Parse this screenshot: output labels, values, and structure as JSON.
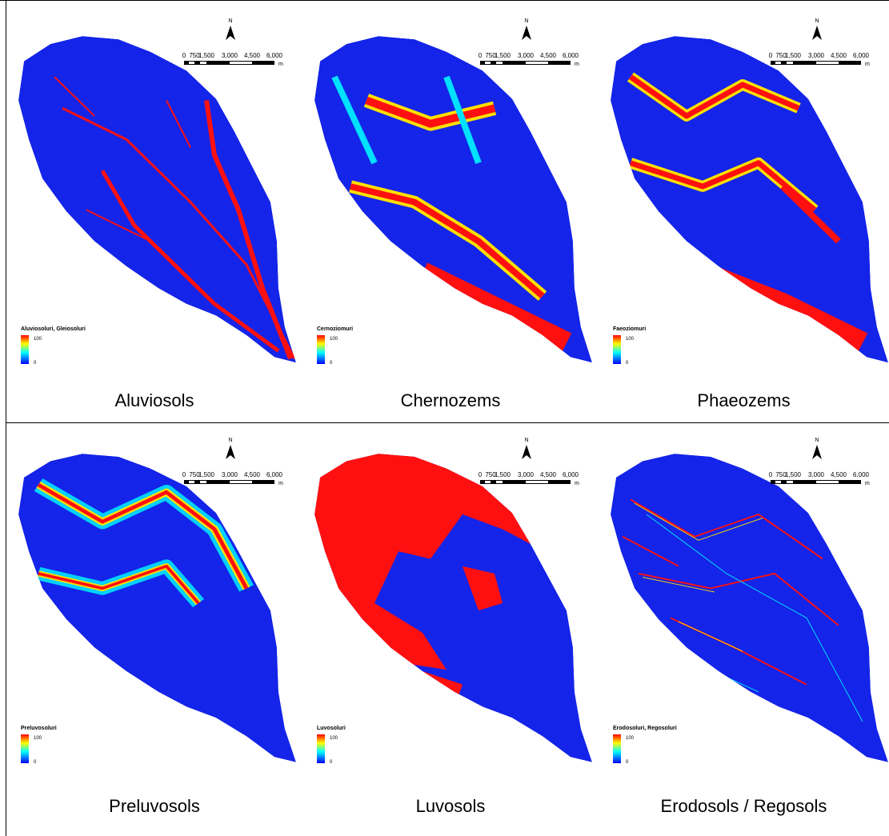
{
  "panels": [
    {
      "caption": "Aluviosols",
      "legend_title": "Aluviosoluri, Gleiosoluri",
      "legend_max": "100",
      "legend_min": "0",
      "north": "N",
      "scale_labels": [
        "0",
        "750",
        "1,500",
        "3,000",
        "4,500",
        "6,000"
      ],
      "scale_unit": "m"
    },
    {
      "caption": "Chernozems",
      "legend_title": "Cernoziomuri",
      "legend_max": "100",
      "legend_min": "0",
      "north": "N",
      "scale_labels": [
        "0",
        "750",
        "1,500",
        "3,000",
        "4,500",
        "6,000"
      ],
      "scale_unit": "m"
    },
    {
      "caption": "Phaeozems",
      "legend_title": "Faeoziomuri",
      "legend_max": "100",
      "legend_min": "0",
      "north": "N",
      "scale_labels": [
        "0",
        "750",
        "1,500",
        "3,000",
        "4,500",
        "6,000"
      ],
      "scale_unit": "m"
    },
    {
      "caption": "Preluvosols",
      "legend_title": "Preluvosoluri",
      "legend_max": "100",
      "legend_min": "0",
      "north": "N",
      "scale_labels": [
        "0",
        "750",
        "1,500",
        "3,000",
        "4,500",
        "6,000"
      ],
      "scale_unit": "m"
    },
    {
      "caption": "Luvosols",
      "legend_title": "Luvosoluri",
      "legend_max": "100",
      "legend_min": "0",
      "north": "N",
      "scale_labels": [
        "0",
        "750",
        "1,500",
        "3,000",
        "4,500",
        "6,000"
      ],
      "scale_unit": "m"
    },
    {
      "caption": "Erodosols / Regosols",
      "legend_title": "Erodosoluri, Regosoluri",
      "legend_max": "100",
      "legend_min": "0",
      "north": "N",
      "scale_labels": [
        "0",
        "750",
        "1,500",
        "3,000",
        "4,500",
        "6,000"
      ],
      "scale_unit": "m"
    }
  ]
}
